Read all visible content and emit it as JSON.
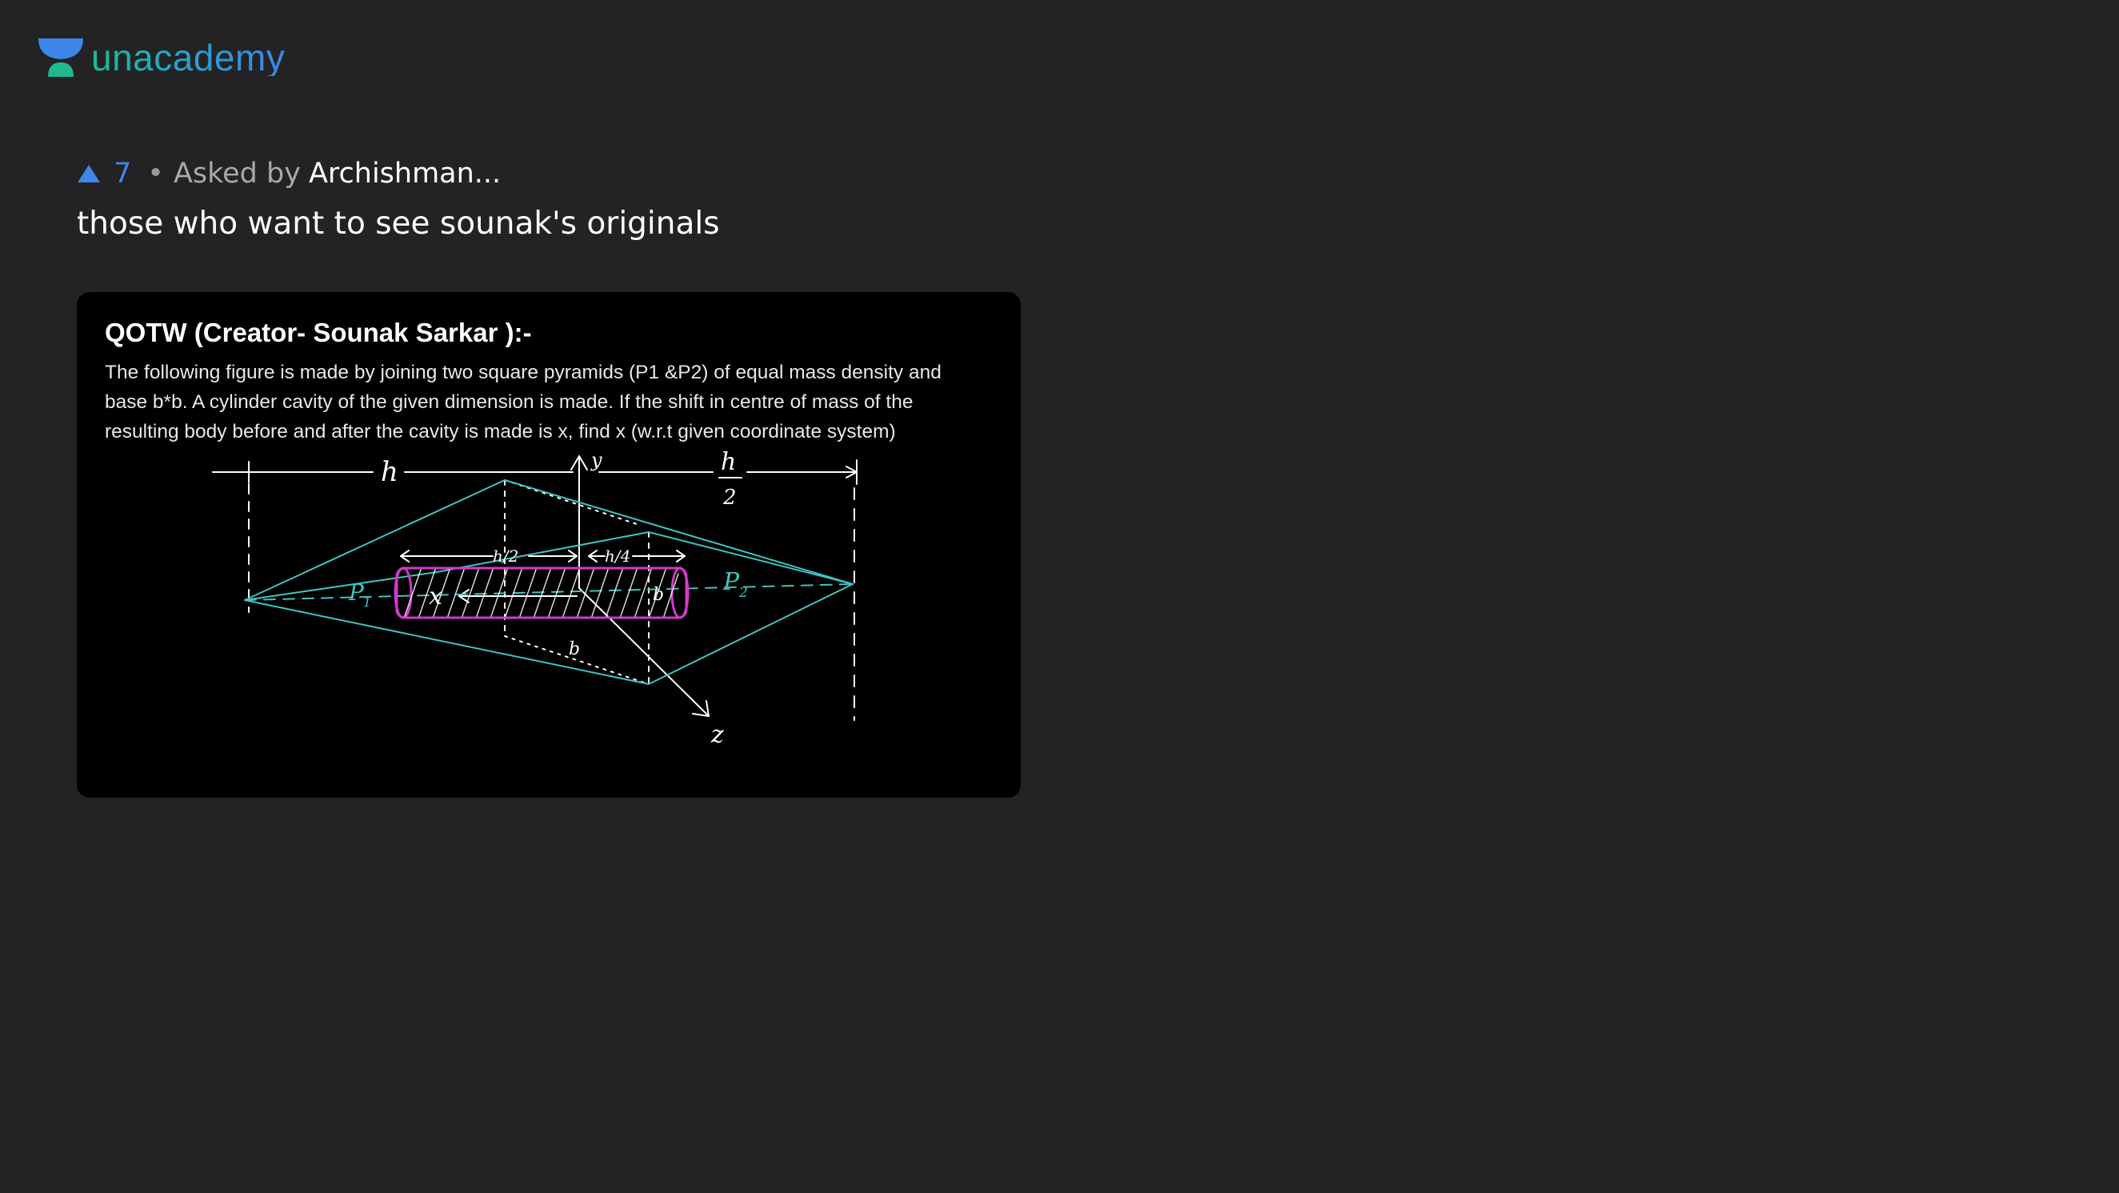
{
  "brand": {
    "name": "unacademy",
    "colors": {
      "gradient_start": "#1fb990",
      "gradient_end": "#3d86ea"
    }
  },
  "post": {
    "upvotes": "7",
    "separator": "•",
    "asked_by_label": "Asked by",
    "author": "Archishman...",
    "question_text": "those who want to see sounak's originals"
  },
  "attachment": {
    "title": "QOTW (Creator- Sounak Sarkar ):-",
    "body_lines": [
      "The following figure is made by joining two square pyramids (P1 &P2) of equal mass density and",
      "base b*b. A cylinder cavity of the given dimension is made. If the shift in centre of mass of the",
      "resulting body before and after the cavity is made is x, find x (w.r.t given coordinate system)"
    ],
    "figure_labels": {
      "h": "h",
      "h_half_num": "h",
      "h_half_den": "2",
      "y_axis": "y",
      "z_axis": "z",
      "p1": "P",
      "p1_sub": "1",
      "p2": "P",
      "p2_sub": "2",
      "x": "x",
      "b_small": "b",
      "b_bottom": "b",
      "h_over_2": "h/2",
      "h_over_4": "h/4"
    }
  },
  "colors": {
    "background": "#232325",
    "accent_blue": "#3d86ea",
    "pyramid_edges": "#3fc4c0",
    "cylinder": "#d23ac8"
  }
}
